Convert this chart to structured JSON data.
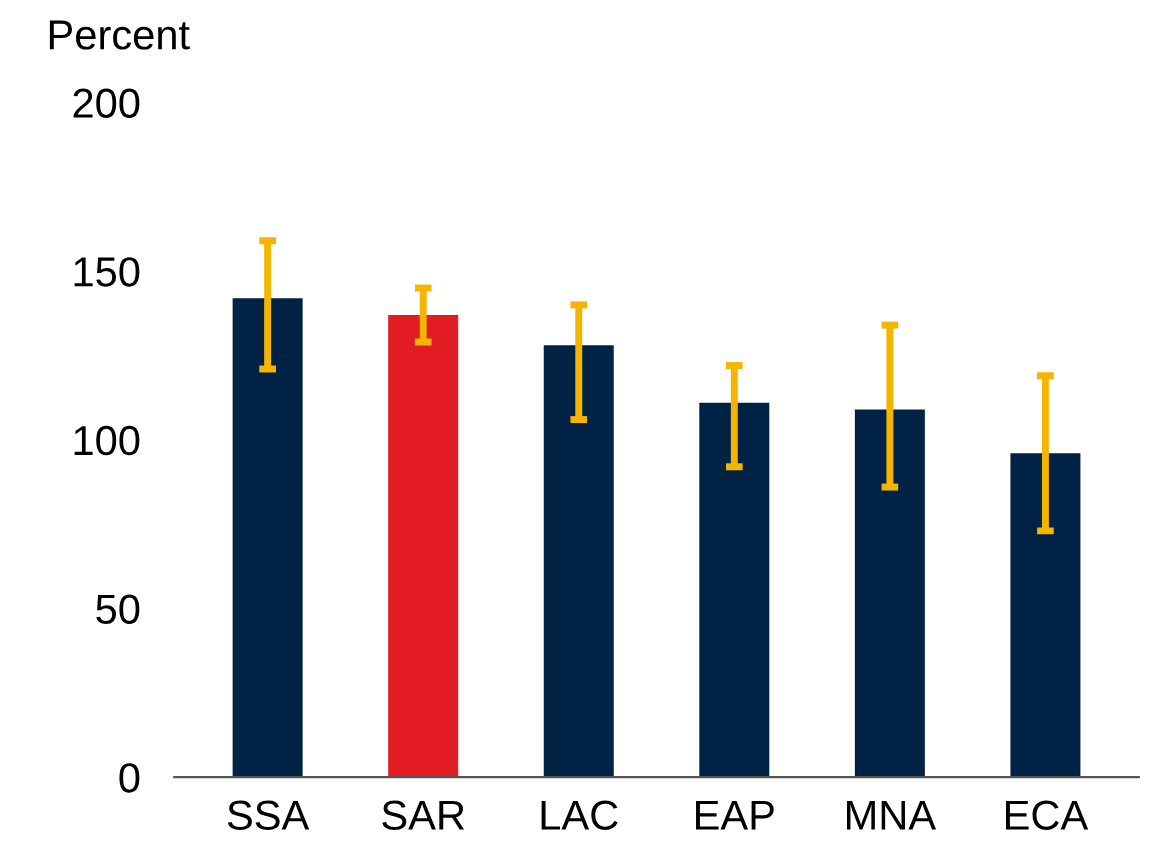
{
  "chart_data": {
    "type": "bar",
    "ylabel": "Percent",
    "categories": [
      "SSA",
      "SAR",
      "LAC",
      "EAP",
      "MNA",
      "ECA"
    ],
    "values": [
      142,
      137,
      128,
      111,
      109,
      96
    ],
    "colors": [
      "#002244",
      "#e31b23",
      "#002244",
      "#002244",
      "#002244",
      "#002244"
    ],
    "errors": [
      [
        121,
        159
      ],
      [
        129,
        145
      ],
      [
        106,
        140
      ],
      [
        92,
        122
      ],
      [
        86,
        134
      ],
      [
        73,
        119
      ]
    ],
    "ylim": [
      0,
      200
    ],
    "yticks": [
      0,
      50,
      100,
      150,
      200
    ],
    "grid": false
  }
}
